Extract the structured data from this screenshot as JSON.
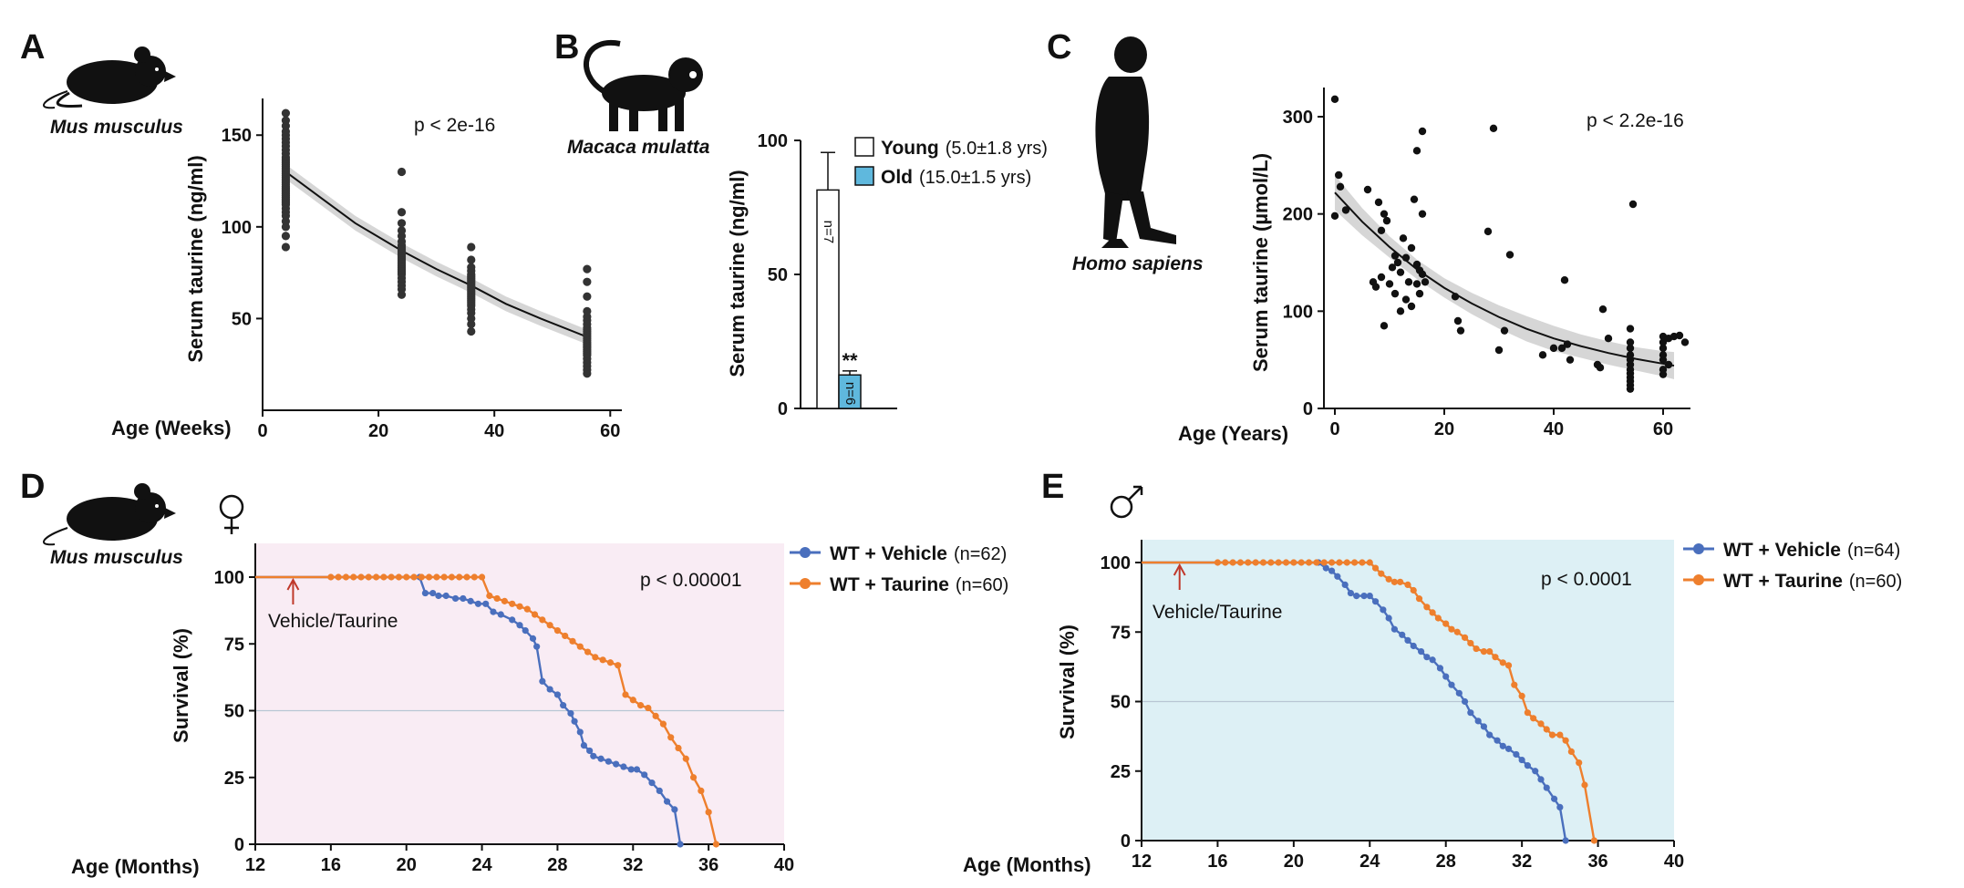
{
  "figure": {
    "panel_letters": [
      "A",
      "B",
      "C",
      "D",
      "E"
    ],
    "colors": {
      "points": "#333333",
      "fit_line": "#111111",
      "ci_band": "#c8c8c8",
      "young_fill": "#ffffff",
      "old_fill": "#5fb8dd",
      "vehicle": "#4a6fbd",
      "taurine": "#ee7f2d",
      "panel_d_bg": "#f9ecf4",
      "panel_e_bg": "#ddf0f5",
      "arrow": "#c0392b",
      "midline": "#b8c6d4"
    },
    "icons": [
      "mouse-silhouette-icon",
      "monkey-silhouette-icon",
      "human-silhouette-icon",
      "female-symbol-icon",
      "male-symbol-icon"
    ]
  },
  "chart_data": [
    {
      "panel": "A",
      "type": "scatter",
      "species": "Mus musculus",
      "xlabel": "Age (Weeks)",
      "ylabel": "Serum taurine (ng/ml)",
      "xlim": [
        0,
        62
      ],
      "ylim": [
        0,
        170
      ],
      "xticks": [
        0,
        20,
        40,
        60
      ],
      "yticks": [
        50,
        100,
        150
      ],
      "annotation": "p < 2e-16",
      "fit": {
        "x": [
          4,
          10,
          16,
          24,
          30,
          36,
          42,
          48,
          56
        ],
        "y": [
          130,
          116,
          102,
          87,
          77,
          68,
          58,
          50,
          40
        ]
      },
      "ci_halfwidth": 4,
      "groups": [
        {
          "x": 4,
          "y": [
            89,
            95,
            100,
            103,
            106,
            108,
            110,
            112,
            113,
            114,
            115,
            116,
            117,
            118,
            119,
            120,
            121,
            122,
            123,
            124,
            125,
            126,
            127,
            128,
            129,
            130,
            131,
            132,
            133,
            134,
            135,
            136,
            137,
            138,
            140,
            142,
            144,
            146,
            148,
            150,
            152,
            155,
            158,
            162
          ]
        },
        {
          "x": 24,
          "y": [
            63,
            66,
            68,
            70,
            72,
            74,
            75,
            76,
            77,
            78,
            79,
            80,
            81,
            82,
            83,
            84,
            85,
            86,
            87,
            88,
            89,
            90,
            92,
            95,
            98,
            102,
            108,
            130
          ]
        },
        {
          "x": 36,
          "y": [
            43,
            47,
            50,
            53,
            55,
            57,
            58,
            59,
            60,
            61,
            62,
            63,
            64,
            65,
            66,
            67,
            68,
            69,
            70,
            71,
            72,
            73,
            74,
            76,
            78,
            82,
            89
          ]
        },
        {
          "x": 56,
          "y": [
            20,
            22,
            24,
            26,
            28,
            30,
            31,
            32,
            33,
            34,
            35,
            36,
            37,
            38,
            39,
            40,
            41,
            42,
            43,
            44,
            45,
            47,
            49,
            51,
            54,
            62,
            70,
            77
          ]
        }
      ]
    },
    {
      "panel": "B",
      "type": "bar",
      "species": "Macaca mulatta",
      "ylabel": "Serum taurine (ng/ml)",
      "ylim": [
        0,
        100
      ],
      "yticks": [
        0,
        50,
        100
      ],
      "significance": "**",
      "bars": [
        {
          "name": "Young",
          "detail": "(5.0±1.8 yrs)",
          "value": 81.5,
          "error": 14,
          "n_label": "n=7"
        },
        {
          "name": "Old",
          "detail": "(15.0±1.5 yrs)",
          "value": 12.5,
          "error": 1.5,
          "n_label": "n=6"
        }
      ]
    },
    {
      "panel": "C",
      "type": "scatter",
      "species": "Homo sapiens",
      "xlabel": "Age (Years)",
      "ylabel": "Serum taurine (µmol/L)",
      "xlim": [
        -2,
        65
      ],
      "ylim": [
        0,
        330
      ],
      "xticks": [
        0,
        20,
        40,
        60
      ],
      "yticks": [
        0,
        100,
        200,
        300
      ],
      "annotation": "p < 2.2e-16",
      "fit": {
        "x": [
          0,
          5,
          10,
          15,
          20,
          25,
          30,
          35,
          40,
          45,
          50,
          55,
          60,
          62
        ],
        "y": [
          222,
          192,
          166,
          143,
          124,
          108,
          94,
          82,
          72,
          64,
          57,
          51,
          46,
          44
        ]
      },
      "ci_halfwidth": [
        18,
        14,
        11,
        10,
        10,
        11,
        12,
        13,
        13,
        12,
        12,
        12,
        13,
        14
      ],
      "points": [
        {
          "x": 0,
          "y": 318
        },
        {
          "x": 0,
          "y": 198
        },
        {
          "x": 0.7,
          "y": 240
        },
        {
          "x": 1,
          "y": 228
        },
        {
          "x": 2,
          "y": 204
        },
        {
          "x": 6,
          "y": 225
        },
        {
          "x": 7,
          "y": 130
        },
        {
          "x": 7.5,
          "y": 125
        },
        {
          "x": 8,
          "y": 212
        },
        {
          "x": 8.5,
          "y": 183
        },
        {
          "x": 8.5,
          "y": 135
        },
        {
          "x": 9,
          "y": 85
        },
        {
          "x": 9,
          "y": 200
        },
        {
          "x": 9.5,
          "y": 193
        },
        {
          "x": 10,
          "y": 128
        },
        {
          "x": 10.5,
          "y": 145
        },
        {
          "x": 11,
          "y": 118
        },
        {
          "x": 11,
          "y": 157
        },
        {
          "x": 11.5,
          "y": 150
        },
        {
          "x": 12,
          "y": 100
        },
        {
          "x": 12,
          "y": 140
        },
        {
          "x": 12.5,
          "y": 175
        },
        {
          "x": 13,
          "y": 155
        },
        {
          "x": 13,
          "y": 112
        },
        {
          "x": 13.5,
          "y": 130
        },
        {
          "x": 14,
          "y": 105
        },
        {
          "x": 14,
          "y": 165
        },
        {
          "x": 14.5,
          "y": 215
        },
        {
          "x": 15,
          "y": 265
        },
        {
          "x": 15,
          "y": 148
        },
        {
          "x": 15,
          "y": 128
        },
        {
          "x": 15.5,
          "y": 118
        },
        {
          "x": 15.5,
          "y": 142
        },
        {
          "x": 16,
          "y": 138
        },
        {
          "x": 16,
          "y": 285
        },
        {
          "x": 16,
          "y": 200
        },
        {
          "x": 16.5,
          "y": 130
        },
        {
          "x": 22,
          "y": 115
        },
        {
          "x": 22.5,
          "y": 90
        },
        {
          "x": 23,
          "y": 80
        },
        {
          "x": 28,
          "y": 182
        },
        {
          "x": 29,
          "y": 288
        },
        {
          "x": 30,
          "y": 60
        },
        {
          "x": 31,
          "y": 80
        },
        {
          "x": 32,
          "y": 158
        },
        {
          "x": 38,
          "y": 55
        },
        {
          "x": 40,
          "y": 62
        },
        {
          "x": 41.5,
          "y": 62
        },
        {
          "x": 42,
          "y": 132
        },
        {
          "x": 42.5,
          "y": 66
        },
        {
          "x": 43,
          "y": 50
        },
        {
          "x": 48,
          "y": 45
        },
        {
          "x": 48.5,
          "y": 42
        },
        {
          "x": 49,
          "y": 102
        },
        {
          "x": 50,
          "y": 72
        },
        {
          "x": 54,
          "y": 20
        },
        {
          "x": 54,
          "y": 24
        },
        {
          "x": 54,
          "y": 28
        },
        {
          "x": 54,
          "y": 32
        },
        {
          "x": 54,
          "y": 36
        },
        {
          "x": 54,
          "y": 40
        },
        {
          "x": 54,
          "y": 45
        },
        {
          "x": 54,
          "y": 50
        },
        {
          "x": 54,
          "y": 55
        },
        {
          "x": 54,
          "y": 62
        },
        {
          "x": 54,
          "y": 68
        },
        {
          "x": 54,
          "y": 82
        },
        {
          "x": 54.5,
          "y": 210
        },
        {
          "x": 60,
          "y": 35
        },
        {
          "x": 60,
          "y": 40
        },
        {
          "x": 60,
          "y": 50
        },
        {
          "x": 60,
          "y": 55
        },
        {
          "x": 60,
          "y": 62
        },
        {
          "x": 60,
          "y": 68
        },
        {
          "x": 60,
          "y": 74
        },
        {
          "x": 61,
          "y": 72
        },
        {
          "x": 61,
          "y": 45
        },
        {
          "x": 62,
          "y": 74
        },
        {
          "x": 63,
          "y": 75
        },
        {
          "x": 64,
          "y": 68
        }
      ]
    },
    {
      "panel": "D",
      "type": "line",
      "subtype": "survival",
      "species": "Mus musculus",
      "sex": "♀",
      "xlabel": "Age (Months)",
      "ylabel": "Survival (%)",
      "xlim": [
        12,
        40
      ],
      "ylim": [
        0,
        110
      ],
      "xticks": [
        12,
        16,
        20,
        24,
        28,
        32,
        36,
        40
      ],
      "yticks": [
        0,
        25,
        50,
        75,
        100
      ],
      "annotation": "p < 0.00001",
      "treatment_label": "Vehicle/Taurine",
      "treatment_month": 14,
      "series": [
        {
          "name": "WT + Vehicle",
          "n_label": "(n=62)",
          "x": [
            12,
            20.7,
            21,
            21.4,
            21.7,
            22.1,
            22.6,
            23,
            23.4,
            23.8,
            24.2,
            24.6,
            25,
            25.6,
            26,
            26.3,
            26.7,
            26.9,
            27.2,
            27.6,
            28,
            28.3,
            28.7,
            28.9,
            29.2,
            29.4,
            29.7,
            29.9,
            30.3,
            30.7,
            31.1,
            31.5,
            31.9,
            32.2,
            32.6,
            33,
            33.4,
            33.8,
            34.2,
            34.5
          ],
          "y": [
            100,
            100,
            94,
            94,
            93,
            93,
            92,
            92,
            91,
            90,
            90,
            87,
            86,
            84,
            82,
            80,
            77,
            74,
            61,
            58,
            56,
            52,
            49,
            46,
            42,
            37,
            35,
            33,
            32,
            31,
            30,
            29,
            28,
            28,
            26,
            23,
            20,
            16,
            13,
            0
          ]
        },
        {
          "name": "WT + Taurine",
          "n_label": "(n=60)",
          "x": [
            12,
            16,
            16.4,
            16.8,
            17.2,
            17.6,
            18,
            18.4,
            18.8,
            19.2,
            19.6,
            20,
            20.4,
            20.8,
            21.2,
            21.6,
            22,
            22.4,
            22.8,
            23.2,
            23.6,
            24,
            24.4,
            24.8,
            25.2,
            25.6,
            26,
            26.4,
            26.8,
            27.2,
            27.6,
            28,
            28.4,
            28.8,
            29.2,
            29.6,
            30,
            30.4,
            30.8,
            31.2,
            31.6,
            32,
            32.4,
            32.8,
            33.2,
            33.6,
            34,
            34.4,
            34.8,
            35.2,
            35.6,
            36,
            36.4
          ],
          "y": [
            100,
            100,
            100,
            100,
            100,
            100,
            100,
            100,
            100,
            100,
            100,
            100,
            100,
            100,
            100,
            100,
            100,
            100,
            100,
            100,
            100,
            100,
            93,
            92,
            91,
            90,
            89,
            88,
            86,
            84,
            82,
            80,
            78,
            76,
            74,
            72,
            70,
            69,
            68,
            67,
            56,
            54,
            52,
            51,
            48,
            45,
            40,
            36,
            32,
            25,
            20,
            12,
            0
          ]
        }
      ]
    },
    {
      "panel": "E",
      "type": "line",
      "subtype": "survival",
      "sex": "♂",
      "xlabel": "Age (Months)",
      "ylabel": "Survival (%)",
      "xlim": [
        12,
        40
      ],
      "ylim": [
        0,
        110
      ],
      "xticks": [
        12,
        16,
        20,
        24,
        28,
        32,
        36,
        40
      ],
      "yticks": [
        0,
        25,
        50,
        75,
        100
      ],
      "annotation": "p < 0.0001",
      "treatment_label": "Vehicle/Taurine",
      "treatment_month": 14,
      "series": [
        {
          "name": "WT + Vehicle",
          "n_label": "(n=64)",
          "x": [
            12,
            21.3,
            21.7,
            22,
            22.3,
            22.7,
            23,
            23.3,
            23.7,
            24,
            24.3,
            24.7,
            25,
            25.3,
            25.7,
            26,
            26.3,
            26.7,
            27,
            27.3,
            27.7,
            28,
            28.3,
            28.7,
            29,
            29.3,
            29.7,
            30,
            30.3,
            30.7,
            31,
            31.3,
            31.7,
            32,
            32.3,
            32.7,
            33,
            33.3,
            33.7,
            34,
            34.3
          ],
          "y": [
            100,
            100,
            98,
            97,
            95,
            92,
            89,
            88,
            88,
            88,
            86,
            83,
            80,
            76,
            74,
            72,
            70,
            68,
            66,
            65,
            62,
            59,
            56,
            53,
            50,
            46,
            43,
            41,
            38,
            36,
            34,
            33,
            31,
            29,
            27,
            25,
            22,
            19,
            15,
            12,
            0
          ]
        },
        {
          "name": "WT + Taurine",
          "n_label": "(n=60)",
          "x": [
            12,
            16,
            16.4,
            16.8,
            17.2,
            17.6,
            18,
            18.4,
            18.8,
            19.2,
            19.6,
            20,
            20.4,
            20.8,
            21.2,
            21.6,
            22,
            22.4,
            22.8,
            23.2,
            23.6,
            24,
            24.3,
            24.6,
            25,
            25.3,
            25.6,
            26,
            26.3,
            26.6,
            27,
            27.3,
            27.6,
            28,
            28.3,
            28.6,
            29,
            29.3,
            29.6,
            30,
            30.3,
            30.6,
            31,
            31.3,
            31.6,
            32,
            32.3,
            32.6,
            33,
            33.3,
            33.6,
            34,
            34.3,
            34.6,
            35,
            35.3,
            35.8
          ],
          "y": [
            100,
            100,
            100,
            100,
            100,
            100,
            100,
            100,
            100,
            100,
            100,
            100,
            100,
            100,
            100,
            100,
            100,
            100,
            100,
            100,
            100,
            100,
            98,
            96,
            94,
            93,
            93,
            92,
            90,
            87,
            84,
            82,
            80,
            78,
            76,
            75,
            73,
            71,
            69,
            68,
            68,
            66,
            64,
            63,
            56,
            52,
            46,
            44,
            42,
            40,
            38,
            38,
            36,
            32,
            28,
            20,
            0
          ]
        }
      ]
    }
  ]
}
